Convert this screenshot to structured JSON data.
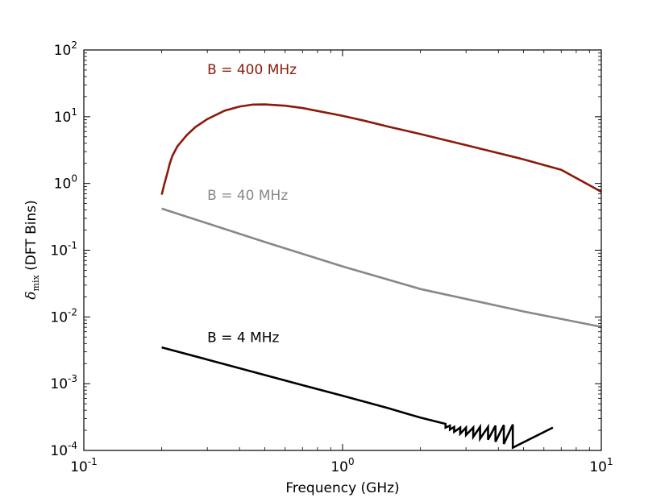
{
  "chart_data": {
    "type": "line",
    "title": "",
    "xlabel": "Frequency (GHz)",
    "ylabel_symbol": "δ",
    "ylabel_sub": "mix",
    "ylabel_rest": " (DFT Bins)",
    "xscale": "log",
    "yscale": "log",
    "xlim": [
      0.1,
      10
    ],
    "ylim": [
      0.0001,
      100
    ],
    "grid": false,
    "x_ticks": [
      {
        "base": "10",
        "exp": "-1",
        "value": 0.1
      },
      {
        "base": "10",
        "exp": "0",
        "value": 1
      },
      {
        "base": "10",
        "exp": "1",
        "value": 10
      }
    ],
    "y_ticks": [
      {
        "base": "10",
        "exp": "-4",
        "value": 0.0001
      },
      {
        "base": "10",
        "exp": "-3",
        "value": 0.001
      },
      {
        "base": "10",
        "exp": "-2",
        "value": 0.01
      },
      {
        "base": "10",
        "exp": "-1",
        "value": 0.1
      },
      {
        "base": "10",
        "exp": "0",
        "value": 1
      },
      {
        "base": "10",
        "exp": "1",
        "value": 10
      },
      {
        "base": "10",
        "exp": "2",
        "value": 100
      }
    ],
    "series": [
      {
        "name": "B = 400 MHz",
        "color": "#8b1a0a",
        "label_pos": {
          "x": 0.3,
          "y": 50
        },
        "x": [
          0.2,
          0.205,
          0.21,
          0.215,
          0.22,
          0.23,
          0.25,
          0.27,
          0.3,
          0.35,
          0.4,
          0.45,
          0.5,
          0.6,
          0.7,
          0.8,
          1.0,
          1.2,
          1.5,
          2.0,
          3.0,
          4.0,
          5.0,
          7.0,
          10.0
        ],
        "y": [
          0.68,
          1.0,
          1.4,
          2.0,
          2.6,
          3.6,
          5.3,
          7.0,
          9.2,
          12.3,
          14.2,
          15.2,
          15.3,
          14.6,
          13.5,
          12.2,
          10.3,
          8.8,
          7.1,
          5.5,
          3.75,
          2.85,
          2.3,
          1.6,
          0.75
        ]
      },
      {
        "name": "B = 40 MHz",
        "color": "#888888",
        "label_pos": {
          "x": 0.3,
          "y": 0.65
        },
        "x": [
          0.2,
          0.5,
          1.0,
          2.0,
          5.0,
          10.0
        ],
        "y": [
          0.42,
          0.133,
          0.0572,
          0.0262,
          0.0121,
          0.0071
        ]
      },
      {
        "name": "B = 4 MHz",
        "color": "#000000",
        "label_pos": {
          "x": 0.3,
          "y": 0.0048
        },
        "x": [
          0.2,
          0.3,
          0.5,
          0.7,
          1.0,
          1.5,
          2.0,
          2.4,
          2.5,
          2.5,
          2.6,
          2.6,
          2.7,
          2.7,
          2.85,
          2.85,
          3.0,
          3.0,
          3.2,
          3.2,
          3.4,
          3.4,
          3.65,
          3.65,
          3.9,
          3.9,
          4.2,
          4.2,
          4.55,
          4.55,
          6.5
        ],
        "y": [
          0.0035,
          0.0023,
          0.00135,
          0.00095,
          0.00066,
          0.00043,
          0.00031,
          0.00026,
          0.00025,
          0.00022,
          0.000235,
          0.000205,
          0.000225,
          0.00019,
          0.00022,
          0.000178,
          0.00022,
          0.00017,
          0.00022,
          0.00016,
          0.000225,
          0.00015,
          0.000225,
          0.000145,
          0.000235,
          0.000135,
          0.00024,
          0.000125,
          0.000245,
          0.00011,
          0.00022
        ]
      }
    ]
  }
}
